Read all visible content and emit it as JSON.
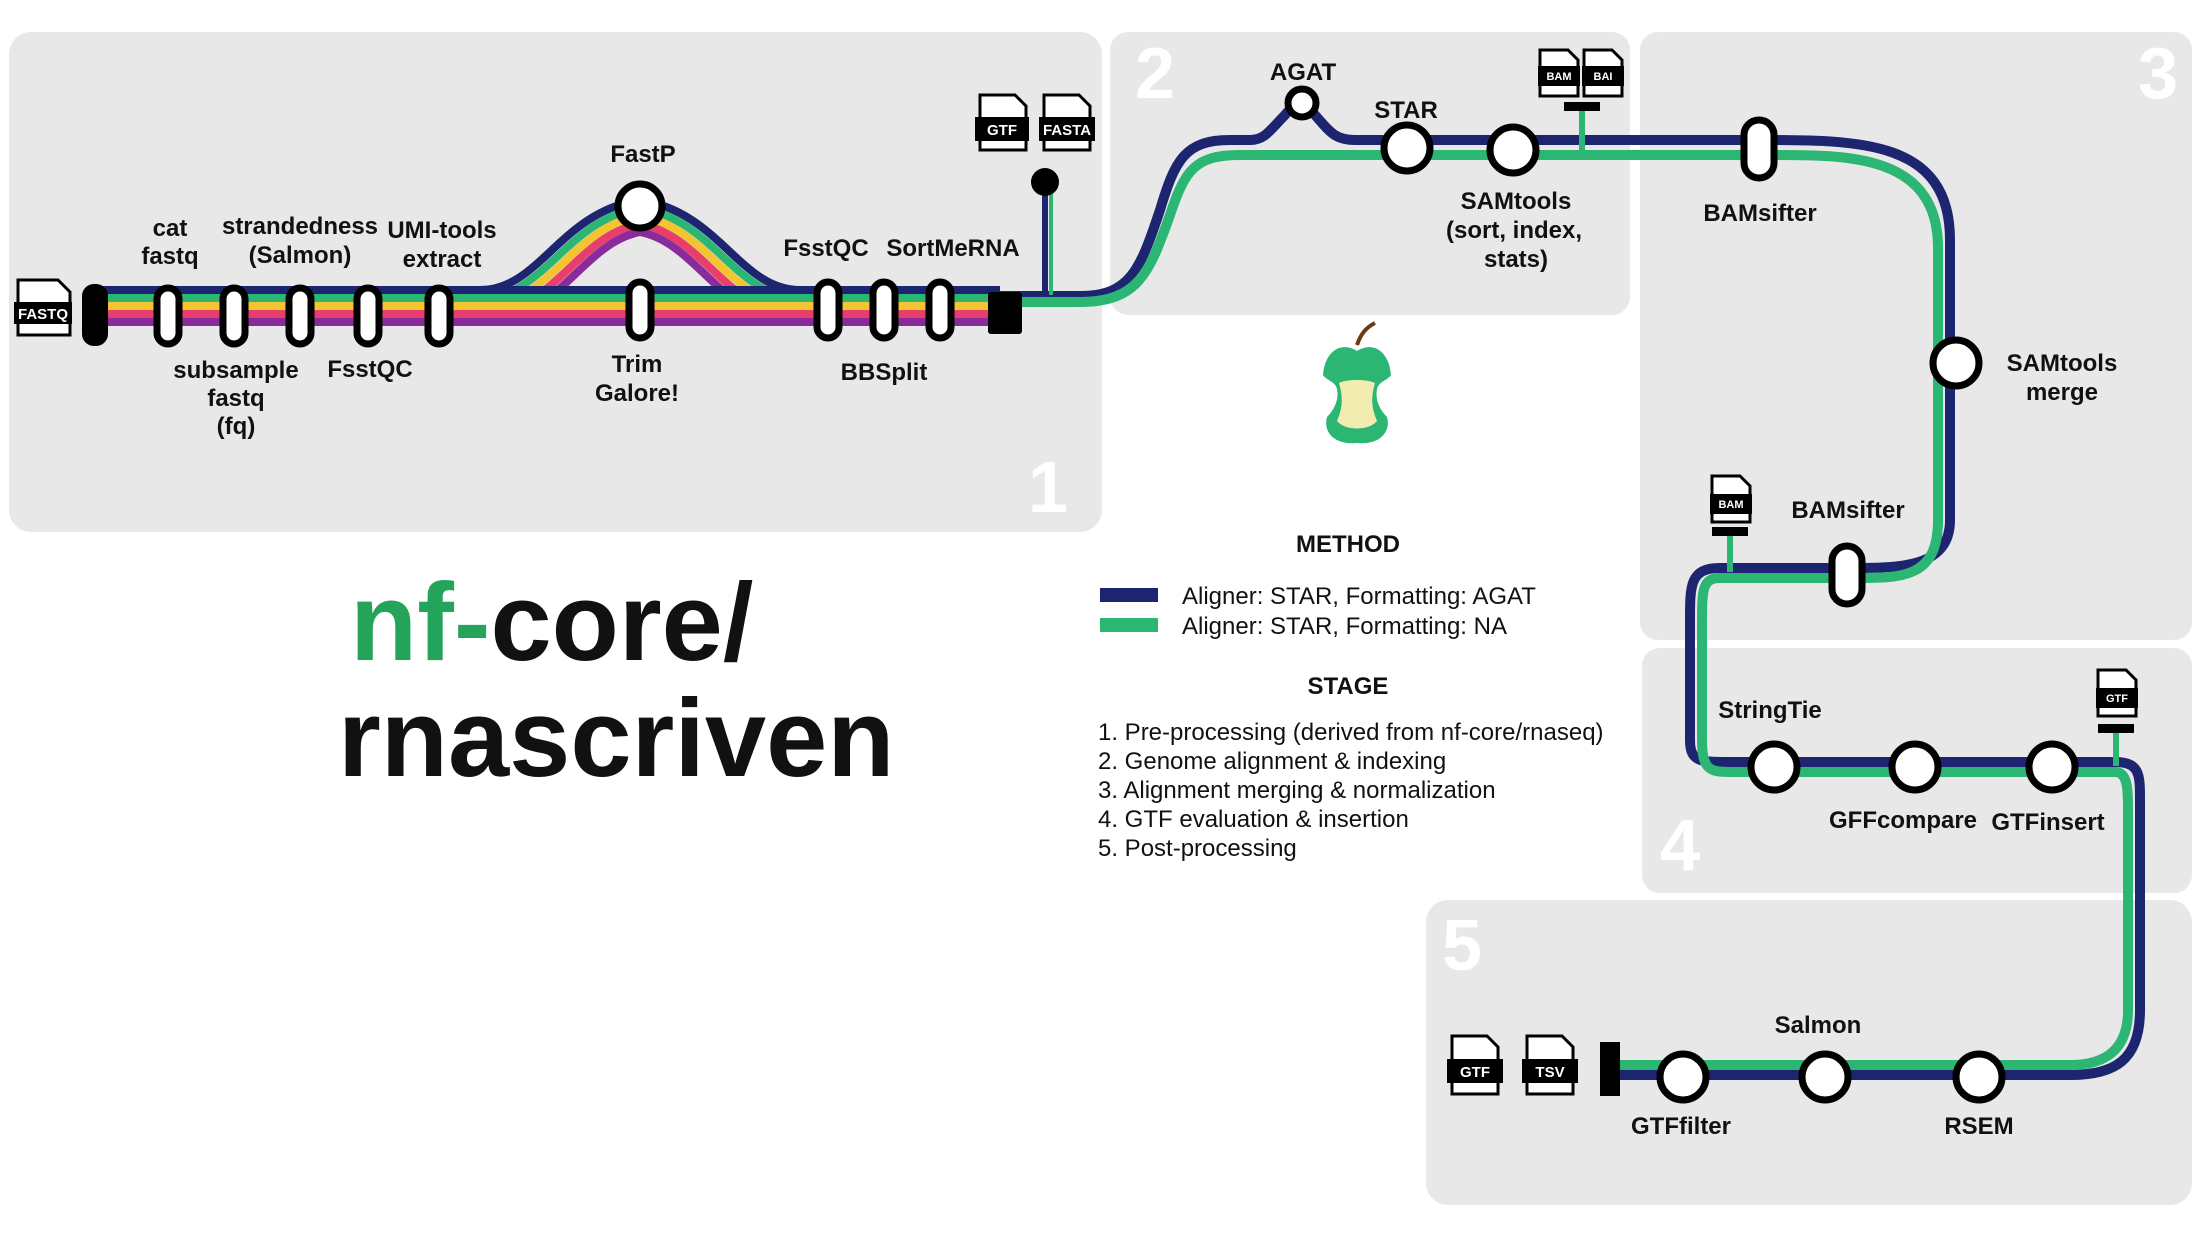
{
  "title": {
    "prefix": "nf-",
    "line1_rest": "core/",
    "line2": "rnascriven"
  },
  "stages": {
    "numbers": [
      "1",
      "2",
      "3",
      "4",
      "5"
    ]
  },
  "tools": {
    "cat_fastq": [
      "cat",
      "fastq"
    ],
    "subsample": [
      "subsample",
      "fastq",
      "(fq)"
    ],
    "strandedness": [
      "strandedness",
      "(Salmon)"
    ],
    "fastqc1": "FsstQC",
    "umi_tools": [
      "UMI-tools",
      "extract"
    ],
    "fastp": "FastP",
    "trim_galore": [
      "Trim",
      "Galore!"
    ],
    "fastqc2": "FsstQC",
    "bbsplit": "BBSplit",
    "sortmerna": "SortMeRNA",
    "agat": "AGAT",
    "star": "STAR",
    "samtools_sort": [
      "SAMtools",
      "(sort, index,",
      "stats)"
    ],
    "bamsifter1": "BAMsifter",
    "samtools_merge": [
      "SAMtools",
      "merge"
    ],
    "bamsifter2": "BAMsifter",
    "stringtie": "StringTie",
    "gffcompare": "GFFcompare",
    "gtfinsert": "GTFinsert",
    "gtffilter": "GTFfilter",
    "salmon": "Salmon",
    "rsem": "RSEM"
  },
  "files": {
    "fastq": "FASTQ",
    "gtf_in": "GTF",
    "fasta_in": "FASTA",
    "bam1": "BAM",
    "bai1": "BAI",
    "bam2": "BAM",
    "gtf_mid": "GTF",
    "gtf_out": "GTF",
    "tsv_out": "TSV"
  },
  "legend": {
    "method_heading": "METHOD",
    "methods": [
      {
        "label": "Aligner: STAR, Formatting: AGAT",
        "color": "#1d2570"
      },
      {
        "label": "Aligner: STAR, Formatting: NA",
        "color": "#2bb673"
      }
    ],
    "stage_heading": "STAGE",
    "stages": [
      "1. Pre-processing (derived from nf-core/rnaseq)",
      "2. Genome alignment & indexing",
      "3. Alignment merging & normalization",
      "4. GTF evaluation & insertion",
      "5. Post-processing"
    ]
  },
  "colors": {
    "navy": "#1d2570",
    "green": "#2bb673",
    "panel": "#e8e8e8",
    "rainbow": [
      "#1d2570",
      "#2bb673",
      "#f4c431",
      "#e83e6c",
      "#8a2b9b"
    ]
  },
  "icons": {
    "logo": "apple-core-icon",
    "file": "file-document-icon"
  }
}
